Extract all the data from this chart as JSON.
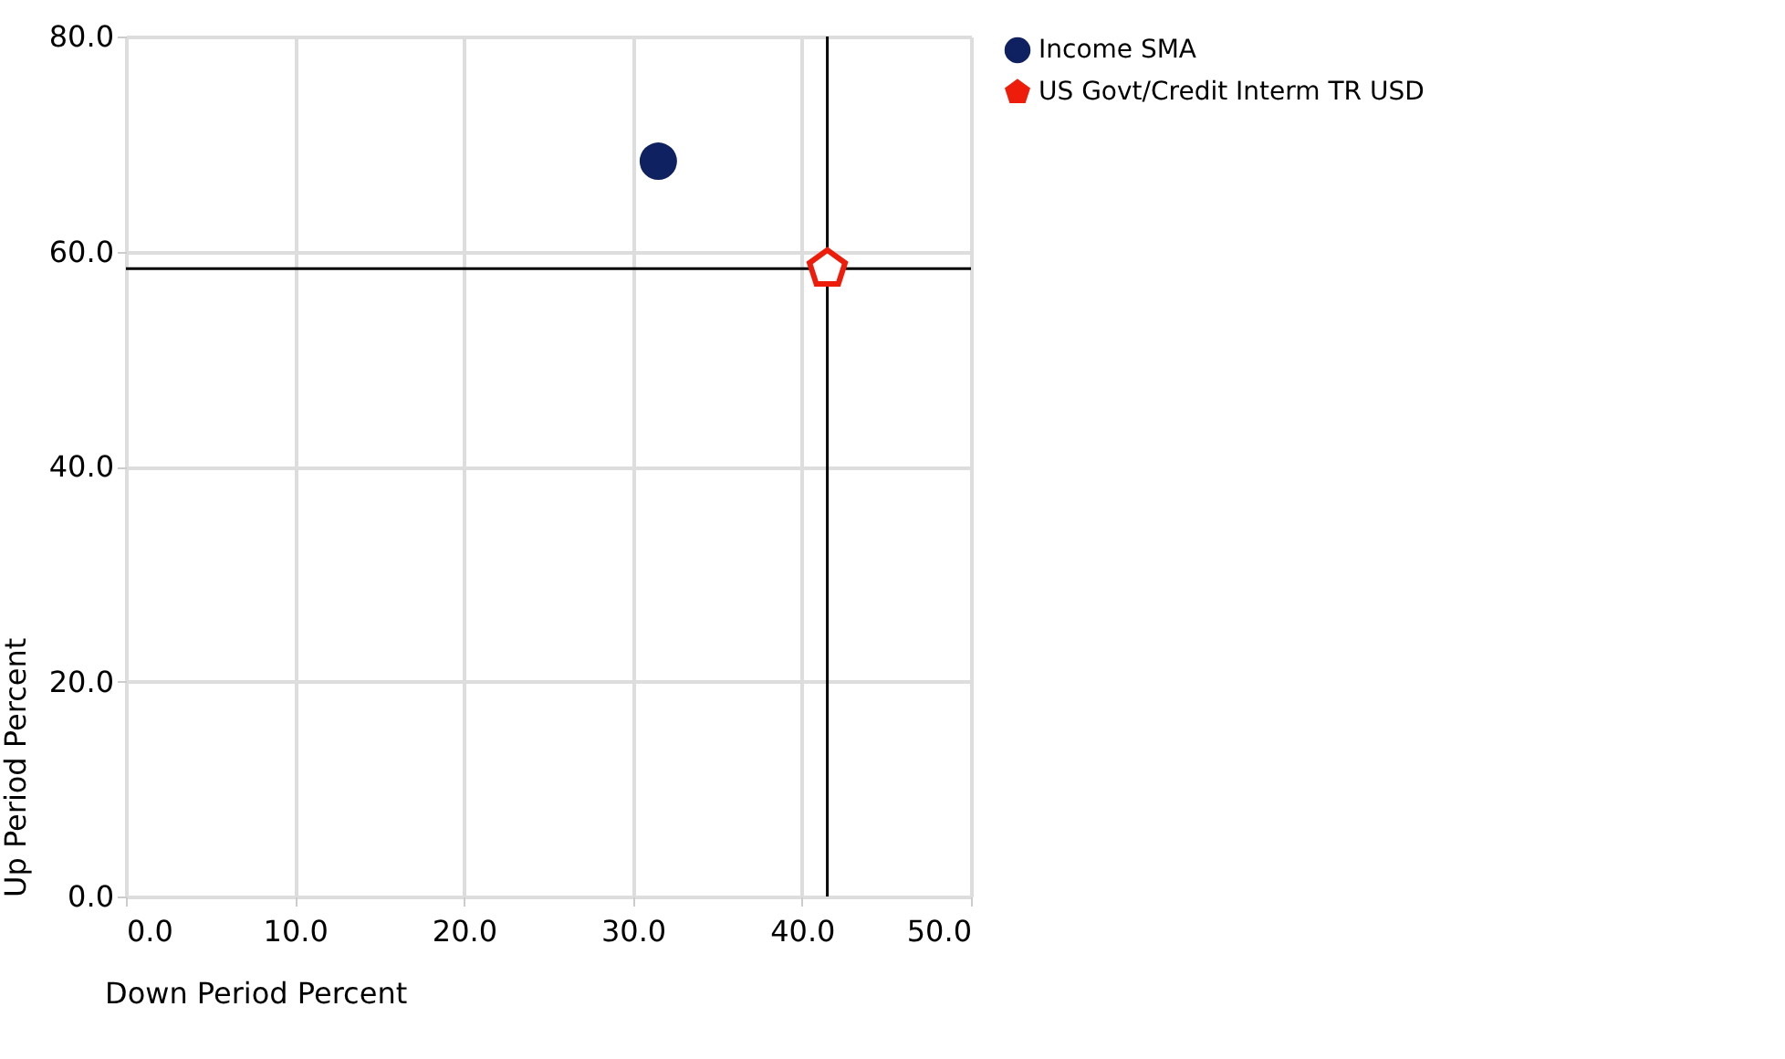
{
  "chart_data": {
    "type": "scatter",
    "xlabel": "Down Period Percent",
    "ylabel": "Up Period Percent",
    "xlim": [
      0,
      50
    ],
    "ylim": [
      0,
      80
    ],
    "xticks": [
      {
        "value": 0,
        "label": "0.0"
      },
      {
        "value": 10,
        "label": "10.0"
      },
      {
        "value": 20,
        "label": "20.0"
      },
      {
        "value": 30,
        "label": "30.0"
      },
      {
        "value": 40,
        "label": "40.0"
      },
      {
        "value": 50,
        "label": "50.0"
      }
    ],
    "yticks": [
      {
        "value": 0,
        "label": "0.0"
      },
      {
        "value": 20,
        "label": "20.0"
      },
      {
        "value": 40,
        "label": "40.0"
      },
      {
        "value": 60,
        "label": "60.0"
      },
      {
        "value": 80,
        "label": "80.0"
      }
    ],
    "grid": true,
    "legend": "top right",
    "series": [
      {
        "name": "Income SMA",
        "color": "#0f2160",
        "marker": "circle",
        "x": [
          31.5
        ],
        "values": [
          68.4
        ]
      },
      {
        "name": "US Govt/Credit Interm TR USD",
        "color": "#ee1c0a",
        "x": [
          41.5
        ],
        "values": [
          58.4
        ]
      }
    ],
    "ref_lines": [
      {
        "axis": "x",
        "value": 41.5,
        "color": "#000000"
      },
      {
        "axis": "y",
        "value": 58.4,
        "color": "#000000"
      }
    ]
  }
}
